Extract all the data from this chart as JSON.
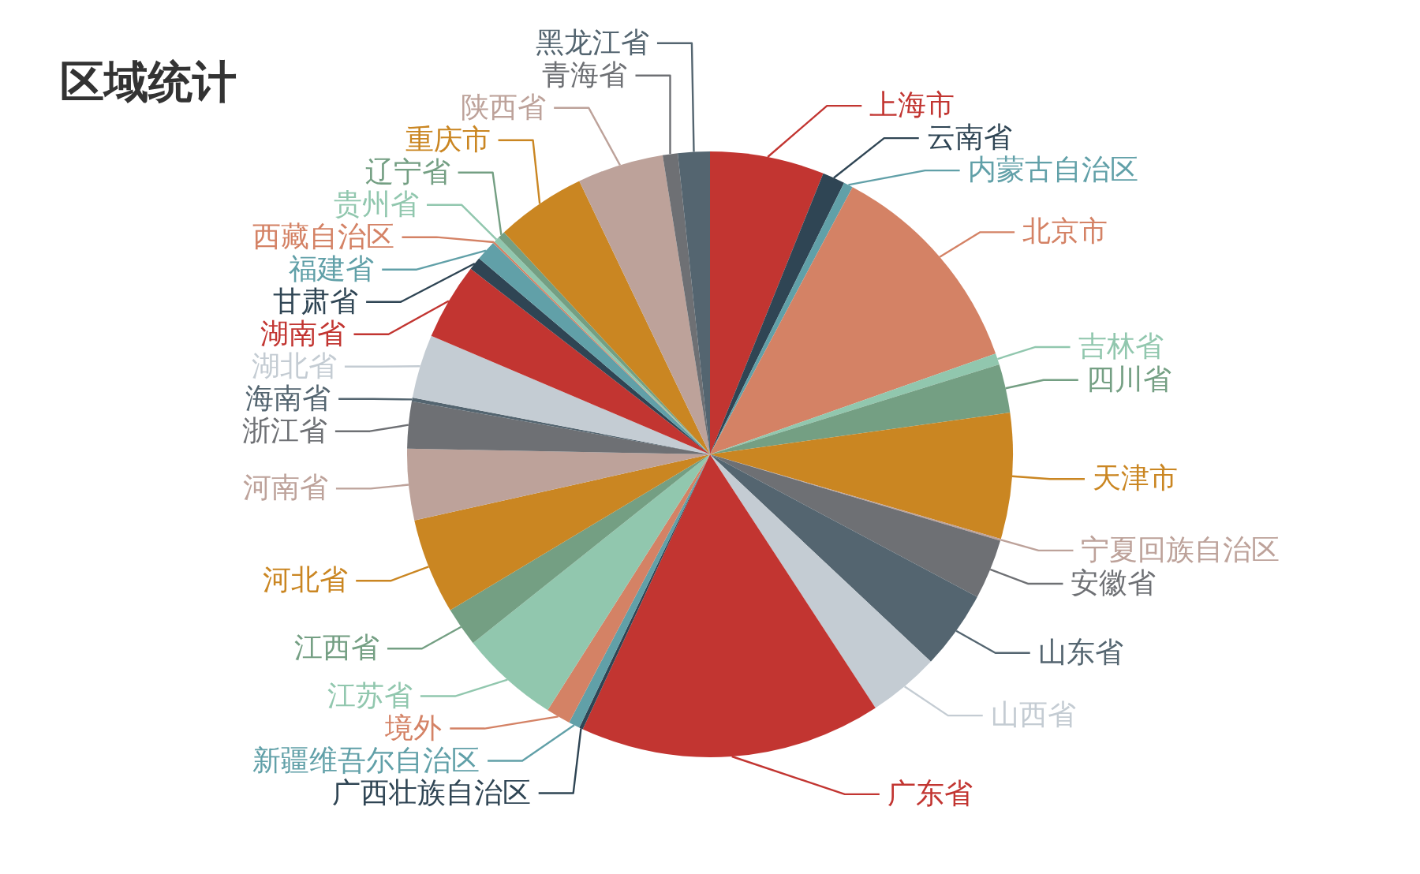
{
  "chart_data": {
    "type": "pie",
    "title": "区域统计",
    "categories": [
      "上海市",
      "云南省",
      "内蒙古自治区",
      "北京市",
      "吉林省",
      "四川省",
      "天津市",
      "宁夏回族自治区",
      "安徽省",
      "山东省",
      "山西省",
      "广东省",
      "广西壮族自治区",
      "新疆维吾尔自治区",
      "境外",
      "江苏省",
      "江西省",
      "河北省",
      "河南省",
      "浙江省",
      "海南省",
      "湖北省",
      "湖南省",
      "甘肃省",
      "福建省",
      "西藏自治区",
      "贵州省",
      "辽宁省",
      "重庆市",
      "陕西省",
      "青海省",
      "黑龙江省"
    ],
    "values": [
      6.1,
      1.2,
      0.5,
      11.8,
      0.6,
      2.6,
      6.7,
      0.1,
      3.2,
      4.2,
      3.8,
      16.1,
      0.2,
      0.6,
      1.3,
      5.3,
      2.1,
      5.1,
      3.8,
      2.5,
      0.2,
      3.4,
      4.1,
      0.7,
      1.1,
      0.1,
      0.3,
      0.4,
      4.8,
      4.6,
      0.8,
      1.7
    ],
    "colors": [
      "#c23531",
      "#2f4554",
      "#61a0a8",
      "#d48265",
      "#91c7ae",
      "#749f83",
      "#ca8622",
      "#bda29a",
      "#6e7074",
      "#546570",
      "#c4ccd3",
      "#c23531",
      "#2f4554",
      "#61a0a8",
      "#d48265",
      "#91c7ae",
      "#749f83",
      "#ca8622",
      "#bda29a",
      "#6e7074",
      "#546570",
      "#c4ccd3",
      "#c23531",
      "#2f4554",
      "#61a0a8",
      "#d48265",
      "#91c7ae",
      "#749f83",
      "#ca8622",
      "#bda29a",
      "#6e7074",
      "#546570"
    ]
  }
}
